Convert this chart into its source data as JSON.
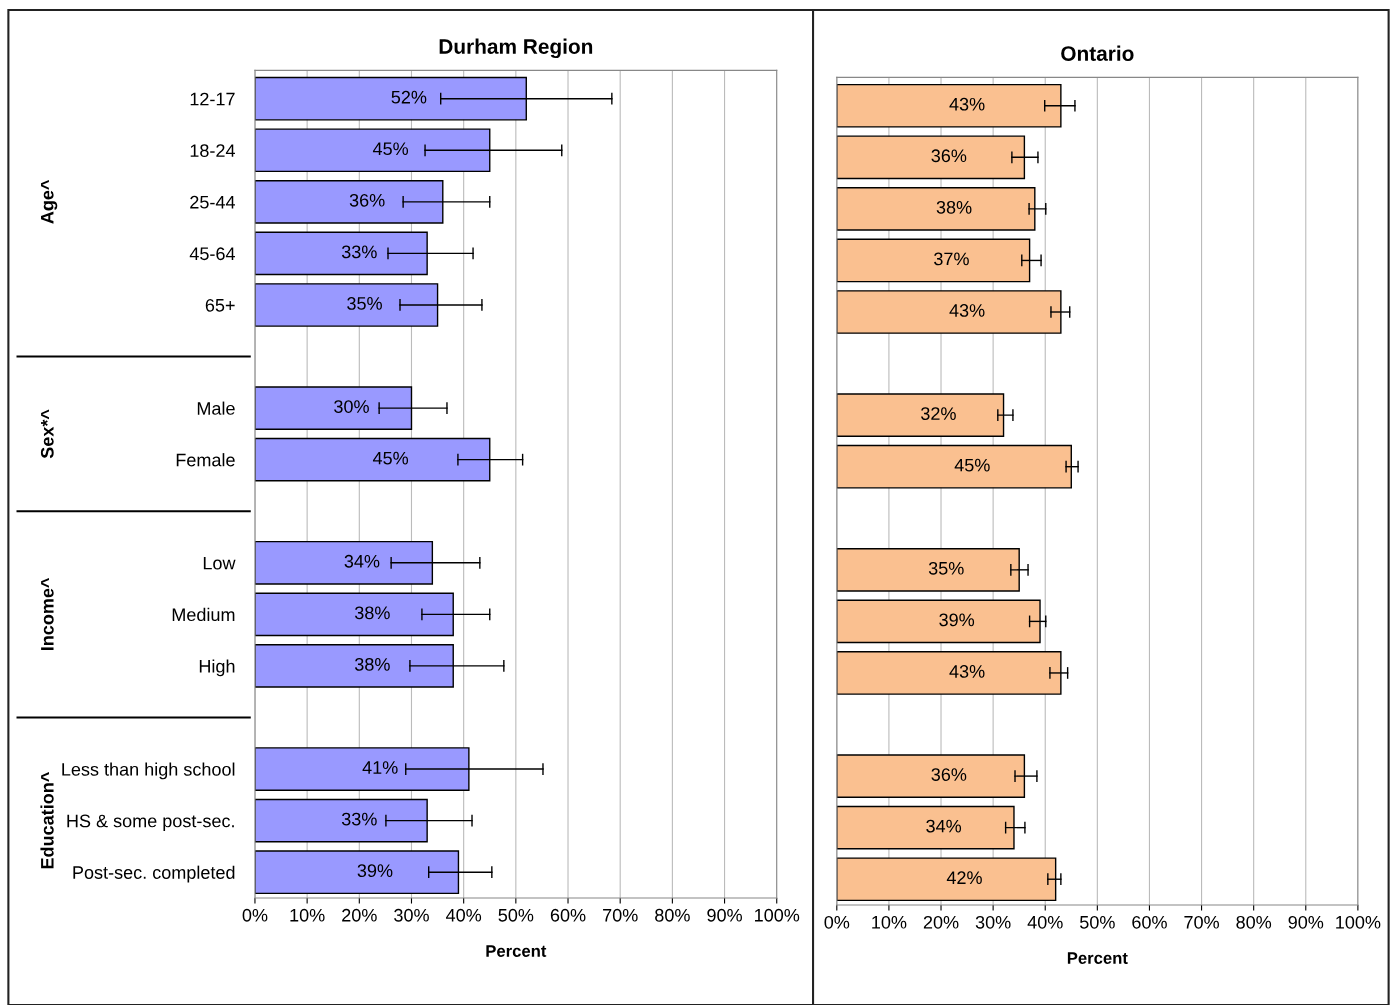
{
  "chart_data": [
    {
      "type": "bar",
      "orientation": "horizontal",
      "title": "Durham Region",
      "xlabel": "Percent",
      "categories": [
        "12-17",
        "18-24",
        "25-44",
        "45-64",
        "65+",
        null,
        "Male",
        "Female",
        null,
        "Low",
        "Medium",
        "High",
        null,
        "Less than high school",
        "HS & some post-sec.",
        "Post-sec. completed"
      ],
      "series": [
        {
          "color": "#9999ff",
          "values": [
            52,
            45,
            36,
            33,
            35,
            null,
            30,
            45,
            null,
            34,
            38,
            38,
            null,
            41,
            33,
            39
          ],
          "errors": [
            [
              35.6,
              68.4
            ],
            [
              32.6,
              58.8
            ],
            [
              28.4,
              45.0
            ],
            [
              25.5,
              41.8
            ],
            [
              27.8,
              43.5
            ],
            null,
            [
              23.8,
              36.8
            ],
            [
              38.9,
              51.3
            ],
            null,
            [
              26.1,
              43.1
            ],
            [
              32.0,
              45.0
            ],
            [
              29.7,
              47.7
            ],
            null,
            [
              28.9,
              55.2
            ],
            [
              25.1,
              41.6
            ],
            [
              33.3,
              45.4
            ]
          ],
          "value_labels": [
            "52%",
            "45%",
            "36%",
            "33%",
            "35%",
            null,
            "30%",
            "45%",
            null,
            "34%",
            "38%",
            "38%",
            null,
            "41%",
            "33%",
            "39%"
          ]
        }
      ],
      "xlim": [
        0,
        100
      ],
      "xticks": [
        {
          "value": 0,
          "label": "0%"
        },
        {
          "value": 10,
          "label": "10%"
        },
        {
          "value": 20,
          "label": "20%"
        },
        {
          "value": 30,
          "label": "30%"
        },
        {
          "value": 40,
          "label": "40%"
        },
        {
          "value": 50,
          "label": "50%"
        },
        {
          "value": 60,
          "label": "60%"
        },
        {
          "value": 70,
          "label": "70%"
        },
        {
          "value": 80,
          "label": "80%"
        },
        {
          "value": 90,
          "label": "90%"
        },
        {
          "value": 100,
          "label": "100%"
        }
      ],
      "grid": "x",
      "annotations": [
        "Age^",
        "Sex*^",
        "Income^",
        "Education^"
      ]
    },
    {
      "type": "bar",
      "orientation": "horizontal",
      "title": "Ontario",
      "xlabel": "Percent",
      "categories": [
        null,
        null,
        null,
        null,
        null,
        null,
        null,
        null,
        null,
        null,
        null,
        null,
        null,
        null,
        null,
        null
      ],
      "series": [
        {
          "color": "#fac090",
          "values": [
            43,
            36,
            38,
            37,
            43,
            null,
            32,
            45,
            null,
            35,
            39,
            43,
            null,
            36,
            34,
            42
          ],
          "errors": [
            [
              39.9,
              45.7
            ],
            [
              33.6,
              38.6
            ],
            [
              36.9,
              40.1
            ],
            [
              35.5,
              39.2
            ],
            [
              41.1,
              44.7
            ],
            null,
            [
              30.9,
              33.8
            ],
            [
              44.0,
              46.3
            ],
            null,
            [
              33.4,
              36.7
            ],
            [
              37.0,
              40.1
            ],
            [
              40.9,
              44.3
            ],
            null,
            [
              34.2,
              38.4
            ],
            [
              32.4,
              36.1
            ],
            [
              40.5,
              43.0
            ]
          ],
          "value_labels": [
            "43%",
            "36%",
            "38%",
            "37%",
            "43%",
            null,
            "32%",
            "45%",
            null,
            "35%",
            "39%",
            "43%",
            null,
            "36%",
            "34%",
            "42%"
          ]
        }
      ],
      "xlim": [
        0,
        100
      ],
      "xticks": [
        {
          "value": 0,
          "label": "0%"
        },
        {
          "value": 10,
          "label": "10%"
        },
        {
          "value": 20,
          "label": "20%"
        },
        {
          "value": 30,
          "label": "30%"
        },
        {
          "value": 40,
          "label": "40%"
        },
        {
          "value": 50,
          "label": "50%"
        },
        {
          "value": 60,
          "label": "60%"
        },
        {
          "value": 70,
          "label": "70%"
        },
        {
          "value": 80,
          "label": "80%"
        },
        {
          "value": 90,
          "label": "90%"
        },
        {
          "value": 100,
          "label": "100%"
        }
      ],
      "grid": "x"
    }
  ]
}
